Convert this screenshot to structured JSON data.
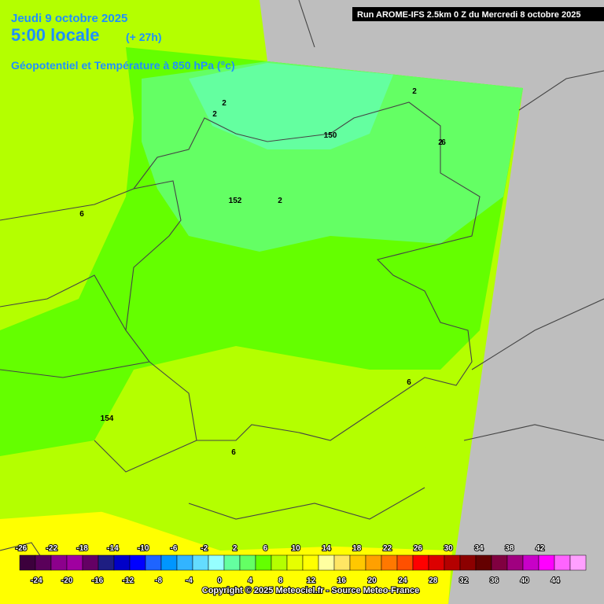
{
  "header": {
    "date": "Jeudi 9 octobre 2025",
    "time": "5:00 locale",
    "lead": "(+ 27h)",
    "title": "Géopotentiel et Température à 850 hPa (°c)",
    "run": "Run AROME-IFS 2.5km 0 Z du Mercredi 8 octobre 2025"
  },
  "contour_labels": [
    "2",
    "2",
    "2",
    "2",
    "150",
    "152",
    "2",
    "6",
    "6",
    "6",
    "154",
    "6"
  ],
  "scale": {
    "values": [
      -26,
      -24,
      -22,
      -20,
      -18,
      -16,
      -14,
      -12,
      -10,
      -8,
      -6,
      -4,
      -2,
      0,
      2,
      4,
      6,
      8,
      10,
      12,
      14,
      16,
      18,
      20,
      22,
      24,
      26,
      28,
      30,
      32,
      34,
      36,
      38,
      40,
      42,
      44
    ],
    "colors": [
      "#3c003c",
      "#5a005a",
      "#8c008c",
      "#a000a0",
      "#640064",
      "#1e1e82",
      "#0000c8",
      "#0000ff",
      "#1e64ff",
      "#0096ff",
      "#32b4ff",
      "#64dcff",
      "#96ffff",
      "#64ffa0",
      "#64ff64",
      "#64ff00",
      "#b4ff00",
      "#e6ff00",
      "#ffff00",
      "#ffffa0",
      "#ffe664",
      "#ffc800",
      "#ffa000",
      "#ff7800",
      "#ff5000",
      "#ff0000",
      "#dc0000",
      "#b40000",
      "#8c0000",
      "#640000",
      "#800040",
      "#a00080",
      "#c800c8",
      "#ff00ff",
      "#ff64ff",
      "#ffa0ff"
    ]
  },
  "copyright": "Copyright © 2025 Meteociel.fr - Source Meteo-France"
}
